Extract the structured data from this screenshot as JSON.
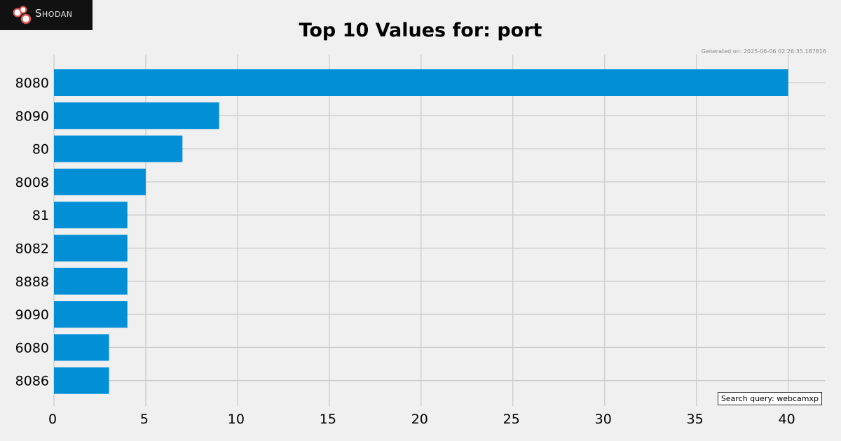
{
  "brand": {
    "logo_text": "Shodan",
    "icon": "shodan-logo-icon"
  },
  "generated_text": "Generated on: 2025-06-06 02:26:35.187816",
  "search_query_text": "Search query: webcamxp",
  "chart_data": {
    "type": "bar",
    "orientation": "horizontal",
    "title": "Top 10 Values for: port",
    "xlabel": "",
    "ylabel": "",
    "categories": [
      "8080",
      "8090",
      "80",
      "8008",
      "81",
      "8082",
      "8888",
      "9090",
      "6080",
      "8086"
    ],
    "values": [
      40,
      9,
      7,
      5,
      4,
      4,
      4,
      4,
      3,
      3
    ],
    "xlim": [
      0,
      42
    ],
    "xticks": [
      0,
      5,
      10,
      15,
      20,
      25,
      30,
      35,
      40
    ],
    "grid": true,
    "bar_color": "#038fd6",
    "grid_color": "#cbcbcb"
  }
}
